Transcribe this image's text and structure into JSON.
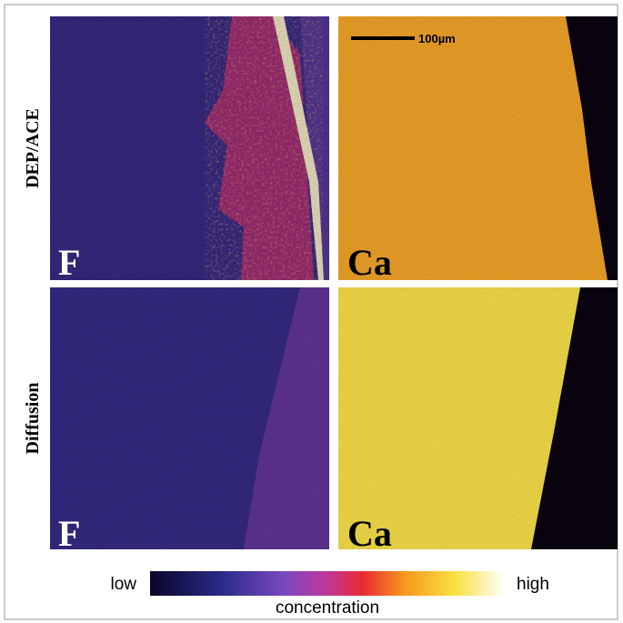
{
  "rows": [
    {
      "label": "DEP/ACE"
    },
    {
      "label": "Diffusion"
    }
  ],
  "panels": [
    {
      "label": "F"
    },
    {
      "label": "Ca"
    },
    {
      "label": "F"
    },
    {
      "label": "Ca"
    }
  ],
  "scale_bar": {
    "label": "100µm"
  },
  "colorbar": {
    "low_label": "low",
    "high_label": "high",
    "title": "concentration"
  }
}
